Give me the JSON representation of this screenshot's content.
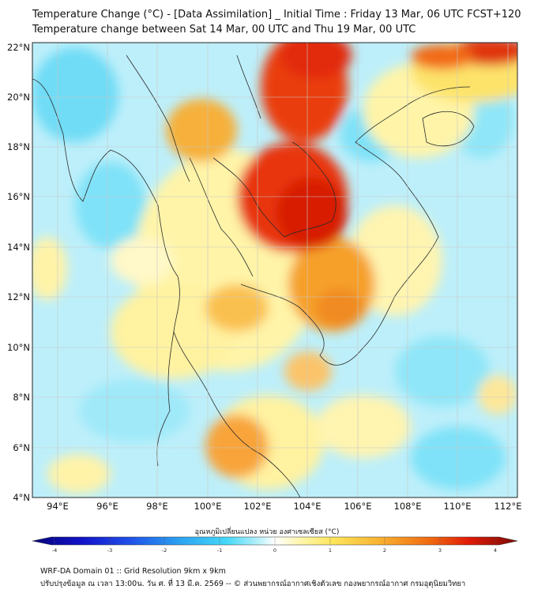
{
  "header": {
    "title_line1": "Temperature Change (°C) - [Data Assimilation] _ Initial Time : Friday 13 Mar, 06 UTC FCST+120",
    "title_line2": "Temperature change between Sat 14 Mar, 00 UTC and Thu 19 Mar, 00 UTC"
  },
  "map": {
    "lat_labels": [
      "22°N",
      "20°N",
      "18°N",
      "16°N",
      "14°N",
      "12°N",
      "10°N",
      "8°N",
      "6°N",
      "4°N"
    ],
    "lon_labels": [
      "94°E",
      "96°E",
      "98°E",
      "100°E",
      "102°E",
      "104°E",
      "106°E",
      "108°E",
      "110°E",
      "112°E"
    ]
  },
  "colorbar": {
    "title": "อุณหภูมิเปลี่ยนแปลง หน่วย องศาเซลเซียส (°C)",
    "ticks": [
      "-4",
      "-3",
      "-2",
      "-1",
      "0",
      "1",
      "2",
      "3",
      "4"
    ],
    "colors": [
      "#05057a",
      "#1212c8",
      "#1f4fe8",
      "#2aa0f0",
      "#44d8f8",
      "#bff2fb",
      "#ffffff",
      "#fff6b0",
      "#fde55a",
      "#f8b030",
      "#f06a10",
      "#e01a08",
      "#7a0b02"
    ]
  },
  "footer": {
    "line1": "WRF-DA Domain 01 :: Grid Resolution 9km x 9km",
    "line2": "ปรับปรุงข้อมูล ณ เวลา 13:00น. วัน ศ. ที่ 13 มี.ค. 2569 -- © ส่วนพยากรณ์อากาศเชิงตัวเลข กองพยากรณ์อากาศ กรมอุตุนิยมวิทยา"
  }
}
